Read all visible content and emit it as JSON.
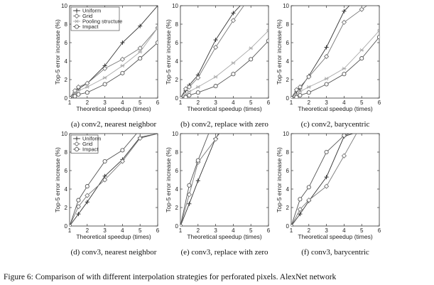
{
  "caption": "Figure 6: Comparison of with different interpolation strategies for perforated pixels. AlexNet network",
  "colors": {
    "dark": "#333333",
    "mid": "#777777",
    "light": "#aaaaaa",
    "impact": "#555555"
  },
  "chart_data": [
    {
      "type": "line",
      "caption": "(a) conv2, nearest neighbor",
      "xlabel": "Theoretical speedup (times)",
      "ylabel": "Top-5 error increase (%)",
      "xlim": [
        1,
        6
      ],
      "ylim": [
        0,
        10
      ],
      "xticks": [
        1,
        2,
        3,
        4,
        5,
        6
      ],
      "yticks": [
        0,
        2,
        4,
        6,
        8,
        10
      ],
      "legend": "top-left",
      "series": [
        {
          "name": "Uniform",
          "marker": "plus",
          "color": "#333333",
          "x": [
            1,
            1.3,
            1.5,
            2,
            3,
            4,
            5,
            6
          ],
          "y": [
            0,
            0.6,
            1.0,
            1.6,
            3.5,
            6.0,
            7.8,
            10.0
          ]
        },
        {
          "name": "Grid",
          "marker": "diamond",
          "color": "#777777",
          "x": [
            1,
            1.3,
            1.5,
            2,
            3,
            4,
            5,
            6
          ],
          "y": [
            0,
            0.8,
            1.2,
            1.6,
            3.2,
            4.2,
            5.4,
            7.6
          ]
        },
        {
          "name": "Pooling structure",
          "marker": "star",
          "color": "#aaaaaa",
          "x": [
            1,
            1.3,
            1.5,
            2,
            3,
            4,
            5,
            6
          ],
          "y": [
            0,
            0.5,
            0.8,
            1.2,
            2.2,
            3.5,
            5.0,
            7.6
          ]
        },
        {
          "name": "Impact",
          "marker": "circle",
          "color": "#555555",
          "x": [
            1,
            1.3,
            1.5,
            2,
            3,
            4,
            5,
            6
          ],
          "y": [
            0,
            0.2,
            0.4,
            0.6,
            1.5,
            2.7,
            4.3,
            6.0
          ]
        }
      ]
    },
    {
      "type": "line",
      "caption": "(b) conv2, replace with zero",
      "xlabel": "Theoretical speedup (times)",
      "ylabel": "Top-5 error increase (%)",
      "xlim": [
        1,
        6
      ],
      "ylim": [
        0,
        10
      ],
      "xticks": [
        1,
        2,
        3,
        4,
        5,
        6
      ],
      "yticks": [
        0,
        2,
        4,
        6,
        8,
        10
      ],
      "series": [
        {
          "name": "Uniform",
          "marker": "plus",
          "color": "#333333",
          "x": [
            1,
            1.3,
            1.5,
            2,
            3,
            4,
            4.4
          ],
          "y": [
            0,
            0.8,
            1.4,
            2.5,
            6.3,
            9.2,
            10.0
          ]
        },
        {
          "name": "Grid",
          "marker": "diamond",
          "color": "#777777",
          "x": [
            1,
            1.3,
            1.5,
            2,
            3,
            4,
            4.6
          ],
          "y": [
            0,
            1.0,
            1.2,
            2.2,
            5.5,
            8.4,
            10.0
          ]
        },
        {
          "name": "Pooling structure",
          "marker": "star",
          "color": "#aaaaaa",
          "x": [
            1,
            1.3,
            1.5,
            2,
            3,
            4,
            5,
            6
          ],
          "y": [
            0,
            0.4,
            0.7,
            1.2,
            2.3,
            3.8,
            5.4,
            7.3
          ]
        },
        {
          "name": "Impact",
          "marker": "circle",
          "color": "#555555",
          "x": [
            1,
            1.3,
            1.5,
            2,
            3,
            4,
            5,
            6
          ],
          "y": [
            0,
            0.1,
            0.3,
            0.6,
            1.3,
            2.6,
            4.2,
            6.2
          ]
        }
      ]
    },
    {
      "type": "line",
      "caption": "(c) conv2, barycentric",
      "xlabel": "Theoretical speedup (times)",
      "ylabel": "Top-5 error increase (%)",
      "xlim": [
        1,
        6
      ],
      "ylim": [
        0,
        10
      ],
      "xticks": [
        1,
        2,
        3,
        4,
        5,
        6
      ],
      "yticks": [
        0,
        2,
        4,
        6,
        8,
        10
      ],
      "series": [
        {
          "name": "Uniform",
          "marker": "plus",
          "color": "#333333",
          "x": [
            1,
            1.3,
            1.5,
            2,
            3,
            4,
            4.3
          ],
          "y": [
            0,
            0.7,
            1.0,
            2.4,
            5.5,
            9.4,
            10.0
          ]
        },
        {
          "name": "Grid",
          "marker": "diamond",
          "color": "#777777",
          "x": [
            1,
            1.3,
            1.5,
            2,
            3,
            4,
            5,
            5.3
          ],
          "y": [
            0,
            0.9,
            1.2,
            2.3,
            4.5,
            8.2,
            9.6,
            10.0
          ]
        },
        {
          "name": "Pooling structure",
          "marker": "star",
          "color": "#aaaaaa",
          "x": [
            1,
            1.3,
            1.5,
            2,
            3,
            4,
            5,
            6
          ],
          "y": [
            0,
            0.4,
            0.7,
            1.2,
            2.1,
            3.2,
            5.2,
            7.3
          ]
        },
        {
          "name": "Impact",
          "marker": "circle",
          "color": "#555555",
          "x": [
            1,
            1.3,
            1.5,
            2,
            3,
            4,
            5,
            6
          ],
          "y": [
            0,
            0.1,
            0.3,
            0.6,
            1.5,
            2.6,
            4.3,
            6.6
          ]
        }
      ]
    },
    {
      "type": "line",
      "caption": "(d) conv3, nearest neighbor",
      "xlabel": "Theoretical speedup (times)",
      "ylabel": "Top-5 error increase (%)",
      "xlim": [
        1,
        6
      ],
      "ylim": [
        0,
        10
      ],
      "xticks": [
        1,
        2,
        3,
        4,
        5,
        6
      ],
      "yticks": [
        0,
        2,
        4,
        6,
        8,
        10
      ],
      "legend": "top-left",
      "series": [
        {
          "name": "Uniform",
          "marker": "plus",
          "color": "#333333",
          "x": [
            1,
            1.5,
            2,
            3,
            4,
            5,
            6
          ],
          "y": [
            0,
            1.3,
            2.6,
            5.4,
            7.2,
            9.6,
            10.0
          ]
        },
        {
          "name": "Grid",
          "marker": "diamond",
          "color": "#777777",
          "x": [
            1,
            1.5,
            2,
            3,
            4,
            5,
            6
          ],
          "y": [
            0,
            2.1,
            3.3,
            5.0,
            7.0,
            9.5,
            10.0
          ]
        },
        {
          "name": "Impact",
          "marker": "circle",
          "color": "#555555",
          "x": [
            1,
            1.5,
            2,
            3,
            4,
            4.8
          ],
          "y": [
            0,
            2.8,
            4.3,
            7.0,
            8.2,
            10.0
          ]
        }
      ]
    },
    {
      "type": "line",
      "caption": "(e) conv3, replace with zero",
      "xlabel": "Theoretical speedup (times)",
      "ylabel": "Top-5 error increase (%)",
      "xlim": [
        1,
        6
      ],
      "ylim": [
        0,
        10
      ],
      "xticks": [
        1,
        2,
        3,
        4,
        5,
        6
      ],
      "yticks": [
        0,
        2,
        4,
        6,
        8,
        10
      ],
      "series": [
        {
          "name": "Uniform",
          "marker": "plus",
          "color": "#333333",
          "x": [
            1,
            1.5,
            2,
            3,
            3.2
          ],
          "y": [
            0,
            2.4,
            4.9,
            9.5,
            10.0
          ]
        },
        {
          "name": "Grid",
          "marker": "diamond",
          "color": "#777777",
          "x": [
            1,
            1.5,
            2,
            3,
            3.15
          ],
          "y": [
            0,
            3.4,
            6.9,
            9.4,
            10.0
          ]
        },
        {
          "name": "Impact",
          "marker": "circle",
          "color": "#555555",
          "x": [
            1,
            1.5,
            2,
            2.6
          ],
          "y": [
            0,
            4.4,
            7.1,
            10.0
          ]
        }
      ]
    },
    {
      "type": "line",
      "caption": "(f) conv3, barycentric",
      "xlabel": "Theoretical speedup (times)",
      "ylabel": "Top-5 error increase (%)",
      "xlim": [
        1,
        6
      ],
      "ylim": [
        0,
        10
      ],
      "xticks": [
        1,
        2,
        3,
        4,
        5,
        6
      ],
      "yticks": [
        0,
        2,
        4,
        6,
        8,
        10
      ],
      "series": [
        {
          "name": "Uniform",
          "marker": "plus",
          "color": "#333333",
          "x": [
            1,
            1.5,
            2,
            3,
            4,
            4.5
          ],
          "y": [
            0,
            1.3,
            2.7,
            5.3,
            9.7,
            10.0
          ]
        },
        {
          "name": "Grid",
          "marker": "diamond",
          "color": "#777777",
          "x": [
            1,
            1.5,
            2,
            3,
            4,
            4.7
          ],
          "y": [
            0,
            1.8,
            2.8,
            4.3,
            7.6,
            10.0
          ]
        },
        {
          "name": "Impact",
          "marker": "circle",
          "color": "#555555",
          "x": [
            1,
            1.5,
            2,
            3,
            4,
            4.3
          ],
          "y": [
            0,
            2.9,
            4.2,
            8.0,
            9.8,
            10.0
          ]
        }
      ]
    }
  ]
}
